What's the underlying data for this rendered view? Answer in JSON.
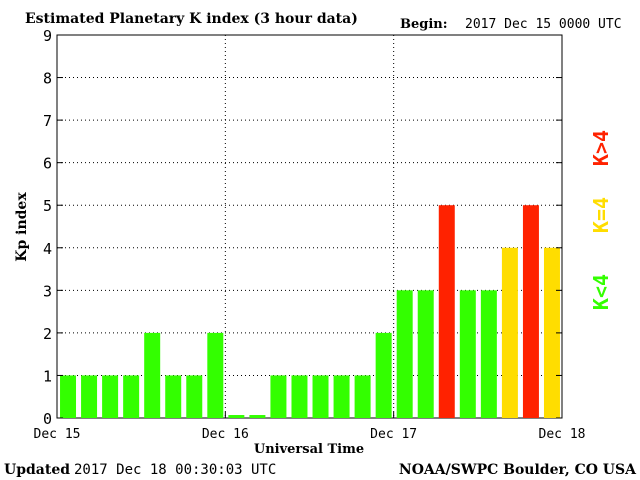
{
  "header": {
    "title": "Estimated Planetary K index (3 hour data)",
    "begin_label": "Begin:",
    "begin_value": "2017 Dec 15 0000 UTC"
  },
  "footer": {
    "updated_label": "Updated",
    "updated_value": "2017 Dec 18 00:30:03 UTC",
    "credit": "NOAA/SWPC Boulder, CO USA"
  },
  "legend": {
    "low": "K<4",
    "eq": "K=4",
    "high": "K>4",
    "colors": {
      "low": "#33ff00",
      "eq": "#ffdd00",
      "high": "#ff2200"
    }
  },
  "chart_data": {
    "type": "bar",
    "title": "Estimated Planetary K index (3 hour data)",
    "xlabel": "Universal Time",
    "ylabel": "Kp index",
    "ylim": [
      0,
      9
    ],
    "yticks": [
      "0",
      "1",
      "2",
      "3",
      "4",
      "5",
      "6",
      "7",
      "8",
      "9"
    ],
    "xticks": [
      "Dec 15",
      "Dec 16",
      "Dec 17",
      "Dec 18"
    ],
    "grid": true,
    "values": [
      1,
      1,
      1,
      1,
      2,
      1,
      1,
      2,
      0.07,
      0.07,
      1,
      1,
      1,
      1,
      1,
      2,
      3,
      3,
      5,
      3,
      3,
      4,
      5,
      4
    ]
  }
}
